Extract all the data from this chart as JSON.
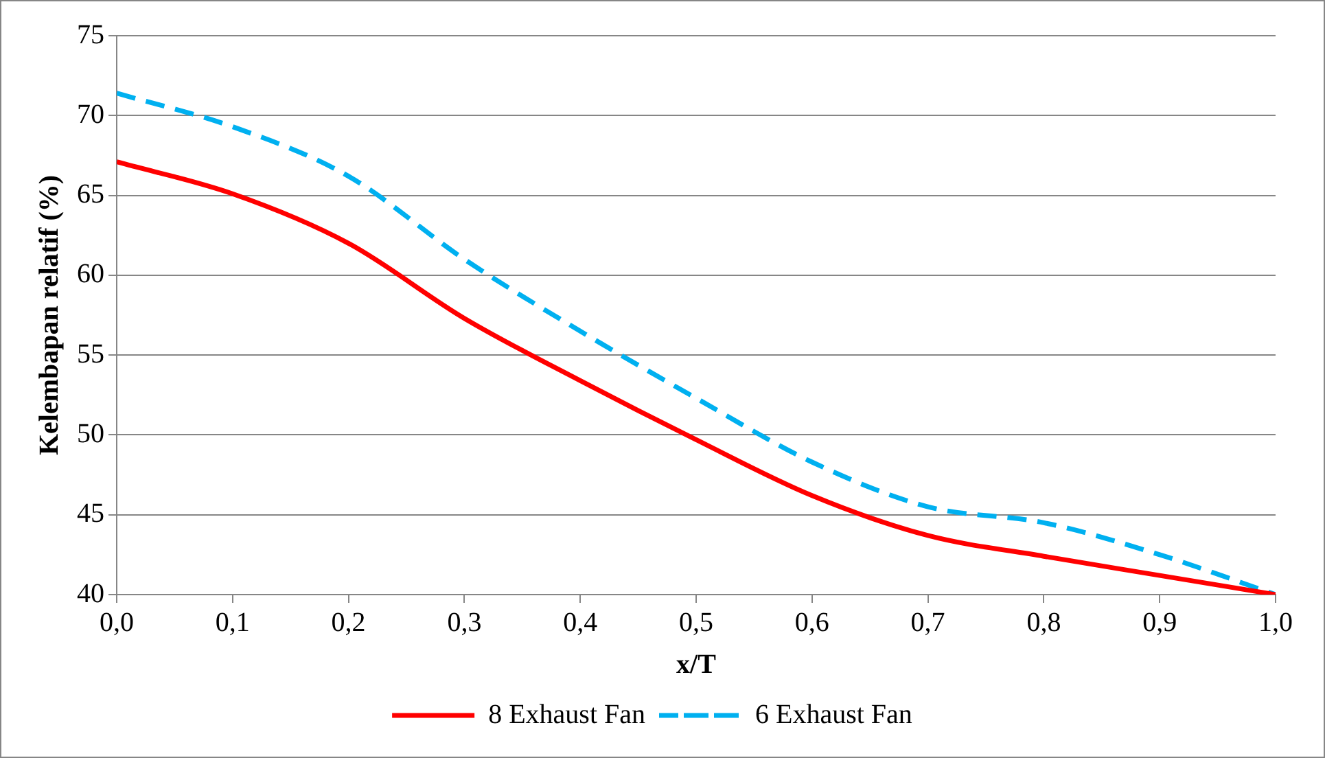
{
  "chart_data": {
    "type": "line",
    "xlabel": "x/T",
    "ylabel": "Kelembapan relatif (%)",
    "x": [
      0,
      0.1,
      0.2,
      0.3,
      0.4,
      0.5,
      0.6,
      0.7,
      0.8,
      0.9,
      1.0
    ],
    "series": [
      {
        "name": "8 Exhaust Fan",
        "color": "#ff0000",
        "line_style": "solid",
        "values": [
          67.1,
          65.1,
          62,
          57.3,
          53.4,
          49.7,
          46.2,
          43.7,
          42.4,
          41.2,
          40
        ]
      },
      {
        "name": "6 Exhaust Fan",
        "color": "#00b0f0",
        "line_style": "dashed",
        "values": [
          71.4,
          69.3,
          66.2,
          61,
          56.5,
          52.3,
          48.3,
          45.5,
          44.5,
          42.5,
          40
        ]
      }
    ],
    "xlim": [
      0,
      1
    ],
    "xticks": [
      {
        "value": 0,
        "label": "0,0"
      },
      {
        "value": 0.1,
        "label": "0,1"
      },
      {
        "value": 0.2,
        "label": "0,2"
      },
      {
        "value": 0.3,
        "label": "0,3"
      },
      {
        "value": 0.4,
        "label": "0,4"
      },
      {
        "value": 0.5,
        "label": "0,5"
      },
      {
        "value": 0.6,
        "label": "0,6"
      },
      {
        "value": 0.7,
        "label": "0,7"
      },
      {
        "value": 0.8,
        "label": "0,8"
      },
      {
        "value": 0.9,
        "label": "0,9"
      },
      {
        "value": 1,
        "label": "1,0"
      }
    ],
    "ylim": [
      40,
      75
    ],
    "yticks": [
      40,
      45,
      50,
      55,
      60,
      65,
      70,
      75
    ],
    "grid": "y",
    "legend": "bottom",
    "marker": "none"
  }
}
